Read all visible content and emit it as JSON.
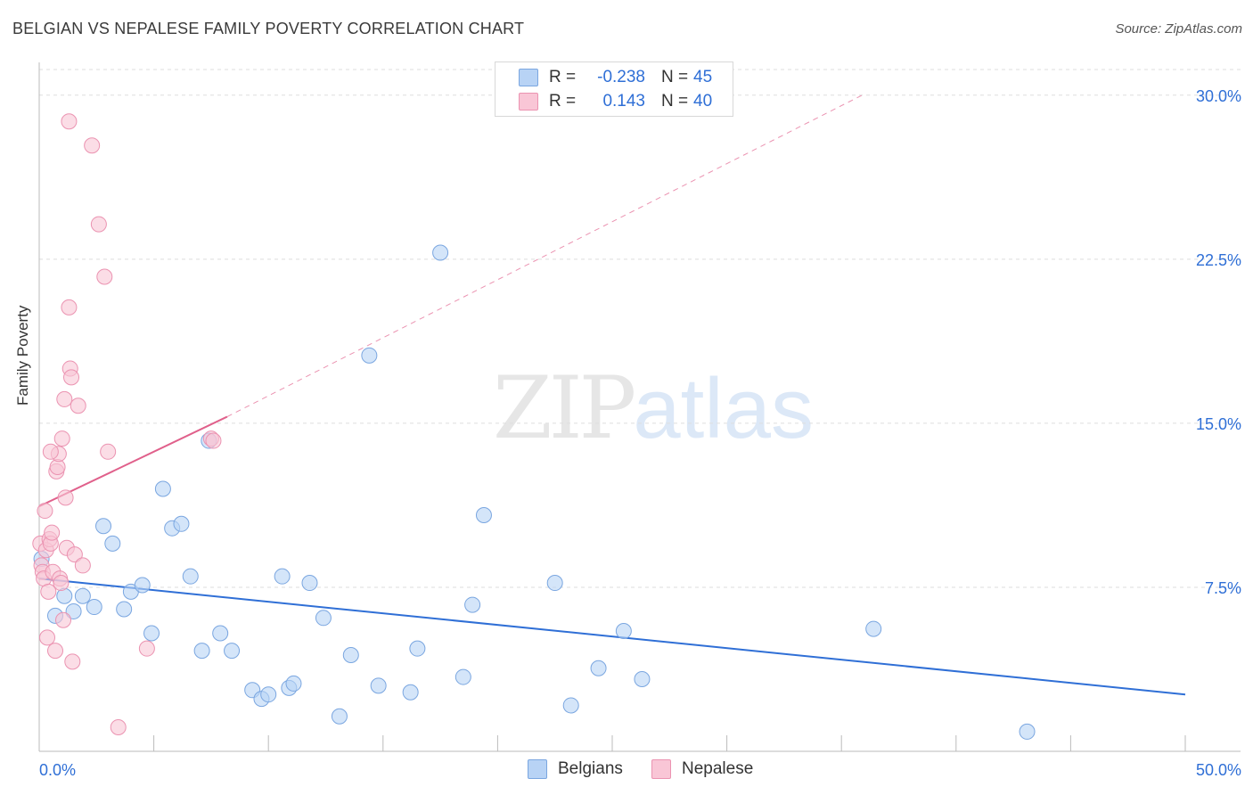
{
  "title": "BELGIAN VS NEPALESE FAMILY POVERTY CORRELATION CHART",
  "source": "Source: ZipAtlas.com",
  "watermark": {
    "zip": "ZIP",
    "atlas": "atlas"
  },
  "legend": {
    "rows": [
      {
        "r_label": "R =",
        "r_value": "-0.238",
        "n_label": "N =",
        "n_value": "45"
      },
      {
        "r_label": "R =",
        "r_value": "0.143",
        "n_label": "N =",
        "n_value": "40"
      }
    ]
  },
  "colors": {
    "belgians_fill": "#b8d3f5",
    "belgians_stroke": "#7aa6e0",
    "belgians_line": "#2f6fd6",
    "nepalese_fill": "#f9c6d6",
    "nepalese_stroke": "#eb93b1",
    "nepalese_line": "#e0608b",
    "tick_label": "#2f6fd6",
    "grid": "#dedede"
  },
  "chart_data": {
    "type": "scatter",
    "title": "BELGIAN VS NEPALESE FAMILY POVERTY CORRELATION CHART",
    "xlabel": "",
    "ylabel": "Family Poverty",
    "xlim": [
      0,
      50
    ],
    "ylim": [
      0,
      31.5
    ],
    "x_tick_labels": [
      "0.0%",
      "50.0%"
    ],
    "y_ticks": [
      7.5,
      15.0,
      22.5,
      30.0
    ],
    "y_tick_labels": [
      "7.5%",
      "15.0%",
      "22.5%",
      "30.0%"
    ],
    "grid": "horizontal dashed",
    "legend_position": "bottom",
    "series": [
      {
        "name": "Belgians",
        "points": [
          [
            0.1,
            8.8
          ],
          [
            0.7,
            6.2
          ],
          [
            1.1,
            7.1
          ],
          [
            1.5,
            6.4
          ],
          [
            1.9,
            7.1
          ],
          [
            2.4,
            6.6
          ],
          [
            2.8,
            10.3
          ],
          [
            3.2,
            9.5
          ],
          [
            3.7,
            6.5
          ],
          [
            4.0,
            7.3
          ],
          [
            4.5,
            7.6
          ],
          [
            4.9,
            5.4
          ],
          [
            5.4,
            12.0
          ],
          [
            5.8,
            10.2
          ],
          [
            6.2,
            10.4
          ],
          [
            6.6,
            8.0
          ],
          [
            7.1,
            4.6
          ],
          [
            7.4,
            14.2
          ],
          [
            7.9,
            5.4
          ],
          [
            8.4,
            4.6
          ],
          [
            9.3,
            2.8
          ],
          [
            9.7,
            2.4
          ],
          [
            10.0,
            2.6
          ],
          [
            10.6,
            8.0
          ],
          [
            10.9,
            2.9
          ],
          [
            11.1,
            3.1
          ],
          [
            11.8,
            7.7
          ],
          [
            12.4,
            6.1
          ],
          [
            13.1,
            1.6
          ],
          [
            13.6,
            4.4
          ],
          [
            14.4,
            18.1
          ],
          [
            14.8,
            3.0
          ],
          [
            16.2,
            2.7
          ],
          [
            16.5,
            4.7
          ],
          [
            17.5,
            22.8
          ],
          [
            18.5,
            3.4
          ],
          [
            18.9,
            6.7
          ],
          [
            19.4,
            10.8
          ],
          [
            22.5,
            7.7
          ],
          [
            23.2,
            2.1
          ],
          [
            24.4,
            3.8
          ],
          [
            25.5,
            5.5
          ],
          [
            26.3,
            3.3
          ],
          [
            36.4,
            5.6
          ],
          [
            43.1,
            0.9
          ]
        ],
        "trend": {
          "x0": 0,
          "y0": 7.9,
          "x1": 50,
          "y1": 2.6
        }
      },
      {
        "name": "Nepalese",
        "points": [
          [
            0.05,
            9.5
          ],
          [
            0.1,
            8.5
          ],
          [
            0.15,
            8.2
          ],
          [
            0.2,
            7.9
          ],
          [
            0.25,
            11.0
          ],
          [
            0.3,
            9.2
          ],
          [
            0.35,
            5.2
          ],
          [
            0.4,
            7.3
          ],
          [
            0.45,
            9.7
          ],
          [
            0.5,
            9.5
          ],
          [
            0.55,
            10.0
          ],
          [
            0.6,
            8.2
          ],
          [
            0.7,
            4.6
          ],
          [
            0.75,
            12.8
          ],
          [
            0.8,
            13.0
          ],
          [
            0.85,
            13.6
          ],
          [
            0.9,
            7.9
          ],
          [
            0.95,
            7.7
          ],
          [
            1.0,
            14.3
          ],
          [
            1.05,
            6.0
          ],
          [
            1.1,
            16.1
          ],
          [
            1.15,
            11.6
          ],
          [
            1.2,
            9.3
          ],
          [
            1.3,
            20.3
          ],
          [
            1.35,
            17.5
          ],
          [
            1.4,
            17.1
          ],
          [
            1.45,
            4.1
          ],
          [
            1.55,
            9.0
          ],
          [
            1.7,
            15.8
          ],
          [
            1.3,
            28.8
          ],
          [
            1.9,
            8.5
          ],
          [
            2.3,
            27.7
          ],
          [
            2.6,
            24.1
          ],
          [
            2.85,
            21.7
          ],
          [
            3.0,
            13.7
          ],
          [
            3.45,
            1.1
          ],
          [
            4.7,
            4.7
          ],
          [
            7.5,
            14.3
          ],
          [
            7.6,
            14.2
          ],
          [
            0.5,
            13.7
          ]
        ],
        "trend": {
          "x0": 0,
          "y0": 11.2,
          "x1": 8.2,
          "y1": 15.3
        },
        "trend_extension": {
          "x0": 8.2,
          "y0": 15.3,
          "x1": 35.9,
          "y1": 30.0
        }
      }
    ]
  },
  "bottom_legend": {
    "belgians": "Belgians",
    "nepalese": "Nepalese"
  }
}
